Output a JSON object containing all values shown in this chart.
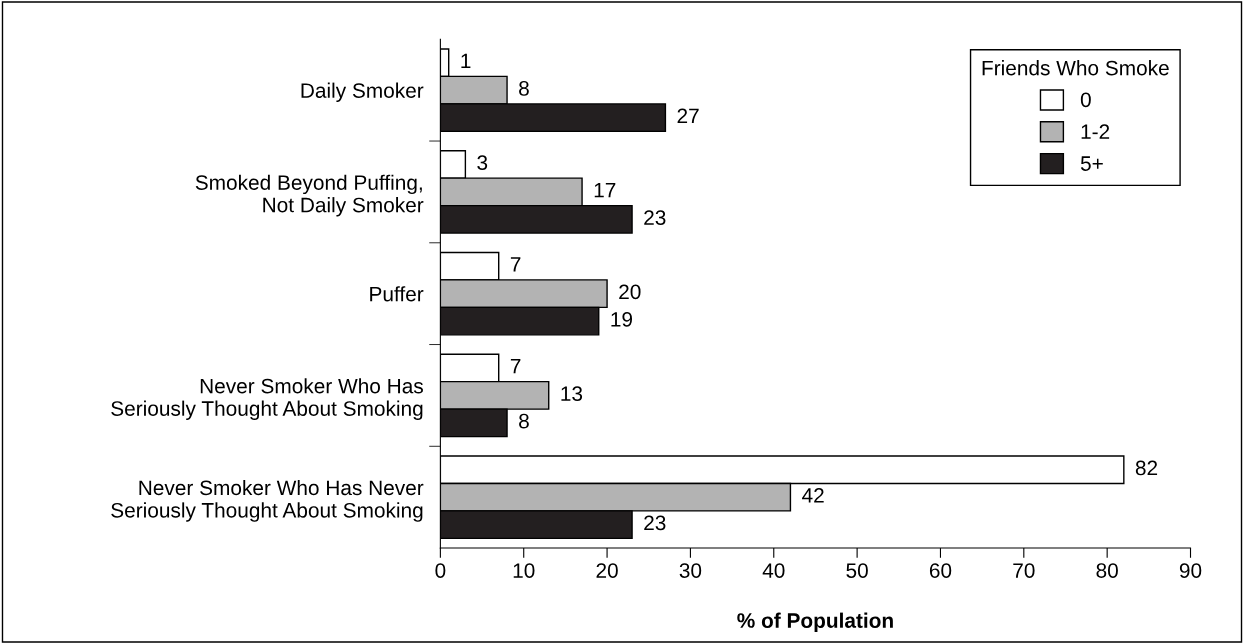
{
  "chart_data": {
    "type": "bar",
    "orientation": "horizontal",
    "categories": [
      "Daily Smoker",
      "Smoked Beyond Puffing,\nNot Daily Smoker",
      "Puffer",
      "Never Smoker Who Has\nSeriously Thought About Smoking",
      "Never Smoker Who Has Never\nSeriously Thought About Smoking"
    ],
    "series": [
      {
        "name": "0",
        "color": "#ffffff",
        "values": [
          1,
          3,
          7,
          7,
          82
        ]
      },
      {
        "name": "1-2",
        "color": "#b3b3b3",
        "values": [
          8,
          17,
          20,
          13,
          42
        ]
      },
      {
        "name": "5+",
        "color": "#231f20",
        "values": [
          27,
          23,
          19,
          8,
          23
        ]
      }
    ],
    "xlabel": "% of Population",
    "legend_title": "Friends Who Smoke",
    "legend": "top right",
    "xlim": [
      0,
      90
    ],
    "xticks": [
      0,
      10,
      20,
      30,
      40,
      50,
      60,
      70,
      80,
      90
    ],
    "data_labels": true,
    "grid": false
  }
}
